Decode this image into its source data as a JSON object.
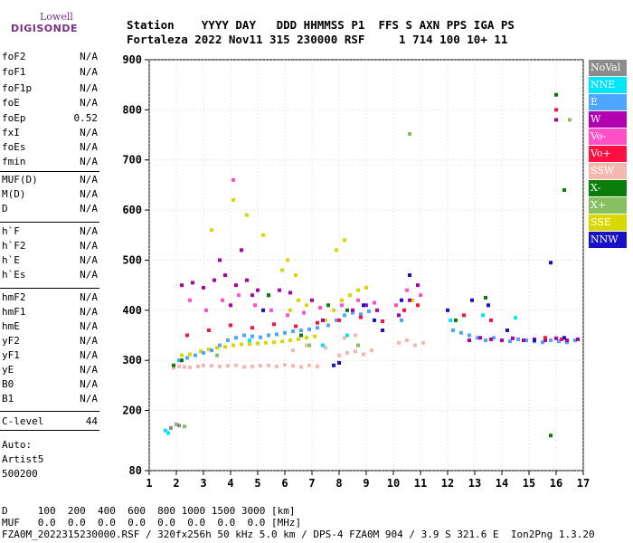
{
  "logo": {
    "line1": "Lowell",
    "line2": "DIGISONDE"
  },
  "header": {
    "labels_line": "Station    YYYY DAY   DDD HHMMSS P1  FFS S AXN PPS IGA PS",
    "values_line": "Fortaleza 2022 Nov11 315 230000 RSF     1 714 100 10+ 11"
  },
  "parameters": [
    {
      "name": "foF2",
      "value": "N/A"
    },
    {
      "name": "foF1",
      "value": "N/A"
    },
    {
      "name": "foF1p",
      "value": "N/A"
    },
    {
      "name": "foE",
      "value": "N/A"
    },
    {
      "name": "foEp",
      "value": "0.52"
    },
    {
      "name": "fxI",
      "value": "N/A"
    },
    {
      "name": "foEs",
      "value": "N/A"
    },
    {
      "name": "fmin",
      "value": "N/A"
    },
    {
      "name": "MUF(D)",
      "value": "N/A"
    },
    {
      "name": "M(D)",
      "value": "N/A"
    },
    {
      "name": "D",
      "value": "N/A"
    },
    {
      "name": "h`F",
      "value": "N/A"
    },
    {
      "name": "h`F2",
      "value": "N/A"
    },
    {
      "name": "h`E",
      "value": "N/A"
    },
    {
      "name": "h`Es",
      "value": "N/A"
    },
    {
      "name": "hmF2",
      "value": "N/A"
    },
    {
      "name": "hmF1",
      "value": "N/A"
    },
    {
      "name": "hmE",
      "value": "N/A"
    },
    {
      "name": "yF2",
      "value": "N/A"
    },
    {
      "name": "yF1",
      "value": "N/A"
    },
    {
      "name": "yE",
      "value": "N/A"
    },
    {
      "name": "B0",
      "value": "N/A"
    },
    {
      "name": "B1",
      "value": "N/A"
    },
    {
      "name": "C-level",
      "value": "44"
    }
  ],
  "autoscaling": {
    "line1": "Auto:",
    "line2": "Artist5",
    "line3": "500200"
  },
  "legend": [
    {
      "label": "NoVal",
      "color": "#8c8c8c"
    },
    {
      "label": "NNE",
      "color": "#00e5ff"
    },
    {
      "label": "E",
      "color": "#4da6ff"
    },
    {
      "label": "W",
      "color": "#b000b0"
    },
    {
      "label": "Vo-",
      "color": "#ff50c8"
    },
    {
      "label": "Vo+",
      "color": "#ff1040"
    },
    {
      "label": "SSW",
      "color": "#f5b8b0"
    },
    {
      "label": "X-",
      "color": "#0a7d0a"
    },
    {
      "label": "X+",
      "color": "#88c060"
    },
    {
      "label": "SSE",
      "color": "#d8d800"
    },
    {
      "label": "NNW",
      "color": "#1a10c8"
    }
  ],
  "footer": {
    "line1": "D     100  200  400  600  800 1000 1500 3000 [km]",
    "line2": "MUF   0.0  0.0  0.0  0.0  0.0  0.0  0.0  0.0 [MHz]",
    "line3": "FZA0M_2022315230000.RSF / 320fx256h 50 kHz 5.0 km / DPS-4 FZA0M 904 / 3.9 S 321.6 E  Ion2Png 1.3.20"
  },
  "chart_data": {
    "type": "scatter",
    "x_range": [
      1,
      17
    ],
    "y_range": [
      80,
      900
    ],
    "x_ticks": [
      1,
      2,
      3,
      4,
      5,
      6,
      7,
      8,
      9,
      10,
      11,
      12,
      13,
      14,
      15,
      16,
      17
    ],
    "y_ticks": [
      80,
      200,
      300,
      400,
      500,
      600,
      700,
      800,
      900
    ],
    "grid": true,
    "legend_position": "right",
    "x_unit": "MHz",
    "y_unit": "km",
    "series": [
      {
        "name": "SSW",
        "color": "#f5b8b0",
        "points": [
          [
            1.9,
            285
          ],
          [
            2.1,
            288
          ],
          [
            2.3,
            287
          ],
          [
            2.5,
            286
          ],
          [
            2.8,
            288
          ],
          [
            3.0,
            290
          ],
          [
            3.3,
            289
          ],
          [
            3.6,
            288
          ],
          [
            3.9,
            289
          ],
          [
            4.2,
            290
          ],
          [
            4.5,
            287
          ],
          [
            4.8,
            288
          ],
          [
            5.1,
            289
          ],
          [
            5.4,
            290
          ],
          [
            5.7,
            288
          ],
          [
            6.0,
            291
          ],
          [
            6.3,
            289
          ],
          [
            6.6,
            287
          ],
          [
            6.9,
            290
          ],
          [
            7.2,
            288
          ],
          [
            8.0,
            310
          ],
          [
            8.3,
            315
          ],
          [
            8.6,
            318
          ],
          [
            8.9,
            312
          ],
          [
            9.2,
            320
          ],
          [
            10.2,
            335
          ],
          [
            10.5,
            340
          ],
          [
            10.8,
            330
          ],
          [
            11.1,
            335
          ],
          [
            6.3,
            320
          ],
          [
            6.8,
            330
          ],
          [
            7.5,
            325
          ],
          [
            8.2,
            345
          ],
          [
            8.6,
            350
          ]
        ]
      },
      {
        "name": "SSE",
        "color": "#d8d800",
        "points": [
          [
            2.2,
            310
          ],
          [
            2.5,
            312
          ],
          [
            2.9,
            318
          ],
          [
            3.2,
            322
          ],
          [
            3.5,
            325
          ],
          [
            3.8,
            327
          ],
          [
            4.1,
            330
          ],
          [
            4.4,
            332
          ],
          [
            4.7,
            333
          ],
          [
            5.0,
            334
          ],
          [
            5.3,
            335
          ],
          [
            5.6,
            336
          ],
          [
            5.9,
            338
          ],
          [
            6.2,
            340
          ],
          [
            6.5,
            342
          ],
          [
            6.8,
            345
          ],
          [
            7.1,
            348
          ],
          [
            7.5,
            380
          ],
          [
            7.8,
            400
          ],
          [
            8.1,
            420
          ],
          [
            8.4,
            430
          ],
          [
            8.7,
            440
          ],
          [
            9.0,
            445
          ],
          [
            5.9,
            480
          ],
          [
            6.1,
            500
          ],
          [
            6.4,
            470
          ],
          [
            7.9,
            520
          ],
          [
            8.2,
            540
          ],
          [
            3.3,
            560
          ],
          [
            4.1,
            620
          ],
          [
            4.6,
            590
          ],
          [
            5.2,
            550
          ],
          [
            6.2,
            400
          ],
          [
            6.5,
            420
          ],
          [
            6.8,
            410
          ],
          [
            10.4,
            400
          ],
          [
            10.7,
            420
          ]
        ]
      },
      {
        "name": "E",
        "color": "#4da6ff",
        "points": [
          [
            2.1,
            300
          ],
          [
            2.4,
            305
          ],
          [
            2.7,
            310
          ],
          [
            3.0,
            315
          ],
          [
            3.3,
            320
          ],
          [
            3.6,
            330
          ],
          [
            3.9,
            340
          ],
          [
            4.2,
            345
          ],
          [
            4.5,
            350
          ],
          [
            4.8,
            348
          ],
          [
            5.1,
            346
          ],
          [
            5.4,
            350
          ],
          [
            5.7,
            352
          ],
          [
            6.0,
            355
          ],
          [
            6.3,
            358
          ],
          [
            6.6,
            360
          ],
          [
            6.9,
            362
          ],
          [
            7.2,
            365
          ],
          [
            7.6,
            370
          ],
          [
            7.9,
            380
          ],
          [
            8.2,
            390
          ],
          [
            8.5,
            395
          ],
          [
            8.8,
            392
          ],
          [
            9.1,
            398
          ],
          [
            10.3,
            380
          ],
          [
            12.2,
            360
          ],
          [
            12.5,
            355
          ],
          [
            12.8,
            350
          ],
          [
            13.1,
            345
          ],
          [
            13.4,
            340
          ],
          [
            13.7,
            345
          ],
          [
            14.0,
            340
          ],
          [
            14.3,
            338
          ],
          [
            14.6,
            342
          ],
          [
            14.9,
            340
          ],
          [
            15.2,
            338
          ],
          [
            15.5,
            336
          ],
          [
            15.8,
            340
          ],
          [
            16.1,
            338
          ],
          [
            16.4,
            336
          ],
          [
            16.7,
            340
          ]
        ]
      },
      {
        "name": "W",
        "color": "#b000b0",
        "points": [
          [
            2.2,
            450
          ],
          [
            2.6,
            455
          ],
          [
            3.0,
            445
          ],
          [
            3.4,
            460
          ],
          [
            3.8,
            470
          ],
          [
            4.2,
            450
          ],
          [
            4.6,
            460
          ],
          [
            5.0,
            440
          ],
          [
            5.4,
            430
          ],
          [
            5.8,
            440
          ],
          [
            6.2,
            435
          ],
          [
            7.0,
            420
          ],
          [
            7.4,
            380
          ],
          [
            8.5,
            400
          ],
          [
            9.0,
            410
          ],
          [
            9.4,
            400
          ],
          [
            10.2,
            390
          ],
          [
            10.6,
            420
          ],
          [
            10.9,
            450
          ],
          [
            12.8,
            340
          ],
          [
            13.2,
            345
          ],
          [
            13.6,
            342
          ],
          [
            14.0,
            340
          ],
          [
            14.4,
            344
          ],
          [
            14.8,
            340
          ],
          [
            15.2,
            342
          ],
          [
            15.6,
            340
          ],
          [
            16.0,
            344
          ],
          [
            16.4,
            340
          ],
          [
            16.8,
            342
          ],
          [
            3.6,
            500
          ],
          [
            4.4,
            520
          ],
          [
            4.0,
            410
          ],
          [
            4.8,
            430
          ],
          [
            16.0,
            780
          ]
        ]
      },
      {
        "name": "Vo-",
        "color": "#ff50c8",
        "points": [
          [
            2.5,
            420
          ],
          [
            3.1,
            400
          ],
          [
            3.7,
            420
          ],
          [
            4.3,
            430
          ],
          [
            4.9,
            410
          ],
          [
            5.5,
            400
          ],
          [
            6.1,
            390
          ],
          [
            6.7,
            395
          ],
          [
            7.3,
            405
          ],
          [
            8.1,
            410
          ],
          [
            8.7,
            420
          ],
          [
            9.3,
            415
          ],
          [
            10.1,
            410
          ],
          [
            10.5,
            440
          ],
          [
            11.0,
            430
          ],
          [
            4.1,
            660
          ]
        ]
      },
      {
        "name": "Vo+",
        "color": "#ff1040",
        "points": [
          [
            2.4,
            350
          ],
          [
            3.2,
            360
          ],
          [
            4.0,
            370
          ],
          [
            4.8,
            365
          ],
          [
            5.6,
            372
          ],
          [
            6.4,
            368
          ],
          [
            7.2,
            375
          ],
          [
            8.0,
            380
          ],
          [
            8.8,
            386
          ],
          [
            9.6,
            378
          ],
          [
            10.4,
            400
          ],
          [
            10.9,
            410
          ],
          [
            12.6,
            390
          ],
          [
            13.6,
            380
          ],
          [
            15.6,
            345
          ],
          [
            16.2,
            342
          ],
          [
            16.0,
            800
          ]
        ]
      },
      {
        "name": "NNE",
        "color": "#00e5ff",
        "points": [
          [
            1.6,
            160
          ],
          [
            1.7,
            155
          ],
          [
            2.2,
            300
          ],
          [
            4.7,
            340
          ],
          [
            7.4,
            330
          ],
          [
            8.3,
            350
          ],
          [
            12.1,
            380
          ],
          [
            13.3,
            390
          ],
          [
            14.5,
            385
          ]
        ]
      },
      {
        "name": "NNW",
        "color": "#1a10c8",
        "points": [
          [
            5.2,
            400
          ],
          [
            7.8,
            290
          ],
          [
            8.0,
            295
          ],
          [
            8.9,
            410
          ],
          [
            9.3,
            380
          ],
          [
            9.6,
            360
          ],
          [
            10.3,
            420
          ],
          [
            10.6,
            470
          ],
          [
            12.0,
            400
          ],
          [
            12.9,
            420
          ],
          [
            13.5,
            410
          ],
          [
            14.2,
            360
          ],
          [
            15.2,
            340
          ],
          [
            15.8,
            495
          ],
          [
            16.3,
            345
          ]
        ]
      },
      {
        "name": "X-",
        "color": "#0a7d0a",
        "points": [
          [
            1.9,
            290
          ],
          [
            2.2,
            300
          ],
          [
            5.4,
            430
          ],
          [
            6.6,
            350
          ],
          [
            7.6,
            410
          ],
          [
            8.3,
            400
          ],
          [
            12.3,
            380
          ],
          [
            13.4,
            425
          ],
          [
            15.8,
            150
          ],
          [
            16.0,
            830
          ],
          [
            16.3,
            640
          ]
        ]
      },
      {
        "name": "X+",
        "color": "#88c060",
        "points": [
          [
            2.0,
            172
          ],
          [
            2.3,
            168
          ],
          [
            3.5,
            310
          ],
          [
            6.9,
            330
          ],
          [
            8.7,
            330
          ],
          [
            16.5,
            780
          ],
          [
            10.6,
            752
          ]
        ]
      },
      {
        "name": "NoVal",
        "color": "#8c8c8c",
        "points": [
          [
            1.8,
            165
          ],
          [
            2.1,
            170
          ]
        ]
      }
    ]
  }
}
